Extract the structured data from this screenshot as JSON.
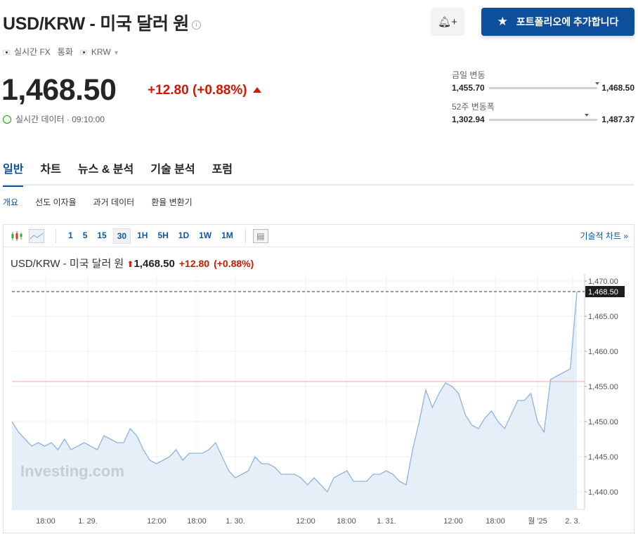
{
  "header": {
    "title": "USD/KRW - 미국 달러 원",
    "info_icon": "info-icon",
    "meta": [
      "실시간 FX",
      "통화",
      "KRW"
    ],
    "alert_icon": "bell-plus-icon",
    "portfolio_button": "포트폴리오에 추가합니다"
  },
  "quote": {
    "price": "1,468.50",
    "change": "+12.80",
    "change_pct": "(+0.88%)",
    "direction": "up",
    "realtime": "실시간 데이터 · 09:10:00"
  },
  "ranges": {
    "day": {
      "label": "금일 변동",
      "low": "1,455.70",
      "high": "1,468.50",
      "position": 1.0
    },
    "week52": {
      "label": "52주 변동폭",
      "low": "1,302.94",
      "high": "1,487.37",
      "position": 0.9
    }
  },
  "tabs": [
    "일반",
    "차트",
    "뉴스 & 분석",
    "기술 분석",
    "포럼"
  ],
  "subtabs": [
    "개요",
    "선도 이자율",
    "과거 데이터",
    "환율 변환기"
  ],
  "toolbar": {
    "intervals": [
      "1",
      "5",
      "15",
      "30",
      "1H",
      "5H",
      "1D",
      "1W",
      "1M"
    ],
    "selected": "30",
    "tech_link": "기술적 차트 »"
  },
  "colors": {
    "accent": "#0e4f9c",
    "up": "#d91400",
    "line": "#8db4dd",
    "fill": "#e6eff8",
    "prev_close": "#f5a3a3"
  },
  "chart_data": {
    "type": "area",
    "title": "USD/KRW - 미국 달러 원",
    "price": "1,468.50",
    "change": "+12.80",
    "change_pct": "(+0.88%)",
    "ylim": [
      1437.5,
      1471
    ],
    "yticks": [
      "1,470.00",
      "1,465.00",
      "1,460.00",
      "1,455.00",
      "1,450.00",
      "1,445.00",
      "1,440.00"
    ],
    "ytick_values": [
      1470,
      1465,
      1460,
      1455,
      1450,
      1445,
      1440
    ],
    "last_label": "1,468.50",
    "last_value": 1468.5,
    "prev_close": 1455.7,
    "xticks": [
      "18:00",
      "1. 29.",
      "12:00",
      "18:00",
      "1. 30.",
      "12:00",
      "18:00",
      "1. 31.",
      "12:00",
      "18:00",
      "월 '25",
      "2. 3."
    ],
    "values": [
      1450,
      1448.5,
      1447.5,
      1446.5,
      1447,
      1446.5,
      1447,
      1446,
      1447.5,
      1446,
      1446.5,
      1447,
      1446.5,
      1446,
      1448,
      1447.5,
      1447,
      1447,
      1449,
      1448,
      1446,
      1444.5,
      1444,
      1444.5,
      1445,
      1446,
      1444.5,
      1445.5,
      1445.5,
      1445.5,
      1446,
      1447,
      1445,
      1443,
      1442,
      1442.5,
      1443,
      1445,
      1444,
      1444,
      1443.5,
      1442.5,
      1442.5,
      1442.5,
      1442,
      1441,
      1442,
      1441,
      1440,
      1442,
      1442.5,
      1443,
      1441.5,
      1441.5,
      1441.5,
      1442.5,
      1442.5,
      1443,
      1442.5,
      1441.5,
      1441,
      1446,
      1450,
      1454.5,
      1452,
      1454,
      1455.5,
      1455,
      1454,
      1451,
      1449.5,
      1449,
      1450.5,
      1451.5,
      1450,
      1449,
      1451,
      1453,
      1453,
      1454,
      1450,
      1448.5,
      1456,
      1456.5,
      1457,
      1457.5,
      1468.5
    ],
    "watermark": "Investing.com"
  }
}
